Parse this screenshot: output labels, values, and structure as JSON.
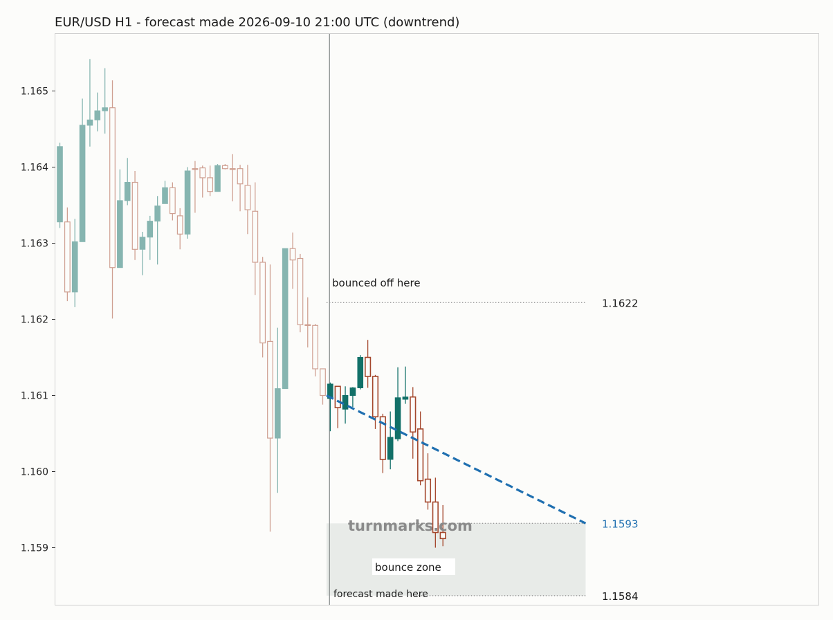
{
  "chart_data": {
    "type": "candlestick",
    "title": "EUR/USD H1 - forecast made 2026-09-10 21:00 UTC (downtrend)",
    "ylim": [
      1.15825,
      1.16575
    ],
    "yticks": [
      "1.159",
      "1.160",
      "1.161",
      "1.162",
      "1.163",
      "1.164",
      "1.165"
    ],
    "xlim": [
      -0.6,
      101
    ],
    "grid": false,
    "colors": {
      "up": "#127068",
      "down": "#a4472c",
      "forecast": "#1f6fb0",
      "zone": "#e8ebe8"
    },
    "history": [
      {
        "o": 1.16328,
        "h": 1.16432,
        "l": 1.1632,
        "c": 1.16427
      },
      {
        "o": 1.16328,
        "h": 1.16347,
        "l": 1.16224,
        "c": 1.16236
      },
      {
        "o": 1.16236,
        "h": 1.16332,
        "l": 1.16216,
        "c": 1.16302
      },
      {
        "o": 1.16302,
        "h": 1.1649,
        "l": 1.16302,
        "c": 1.16455
      },
      {
        "o": 1.16455,
        "h": 1.16542,
        "l": 1.16427,
        "c": 1.16462
      },
      {
        "o": 1.16462,
        "h": 1.16498,
        "l": 1.16447,
        "c": 1.16474
      },
      {
        "o": 1.16474,
        "h": 1.1653,
        "l": 1.16444,
        "c": 1.16478
      },
      {
        "o": 1.16478,
        "h": 1.16514,
        "l": 1.16201,
        "c": 1.16268
      },
      {
        "o": 1.16268,
        "h": 1.16397,
        "l": 1.16268,
        "c": 1.16356
      },
      {
        "o": 1.16356,
        "h": 1.16412,
        "l": 1.1635,
        "c": 1.1638
      },
      {
        "o": 1.1638,
        "h": 1.16395,
        "l": 1.16278,
        "c": 1.16292
      },
      {
        "o": 1.16292,
        "h": 1.16315,
        "l": 1.16258,
        "c": 1.16308
      },
      {
        "o": 1.16308,
        "h": 1.16336,
        "l": 1.16278,
        "c": 1.16329
      },
      {
        "o": 1.16329,
        "h": 1.16362,
        "l": 1.16272,
        "c": 1.16349
      },
      {
        "o": 1.16352,
        "h": 1.16382,
        "l": 1.16352,
        "c": 1.16373
      },
      {
        "o": 1.16373,
        "h": 1.1638,
        "l": 1.1633,
        "c": 1.16339
      },
      {
        "o": 1.16336,
        "h": 1.16346,
        "l": 1.16292,
        "c": 1.16312
      },
      {
        "o": 1.16312,
        "h": 1.164,
        "l": 1.16306,
        "c": 1.16395
      },
      {
        "o": 1.16398,
        "h": 1.16408,
        "l": 1.1634,
        "c": 1.16397
      },
      {
        "o": 1.16399,
        "h": 1.16402,
        "l": 1.1636,
        "c": 1.16386
      },
      {
        "o": 1.16386,
        "h": 1.16402,
        "l": 1.16362,
        "c": 1.16368
      },
      {
        "o": 1.16368,
        "h": 1.16404,
        "l": 1.16368,
        "c": 1.16402
      },
      {
        "o": 1.16402,
        "h": 1.16404,
        "l": 1.16397,
        "c": 1.16398
      },
      {
        "o": 1.16398,
        "h": 1.16417,
        "l": 1.16355,
        "c": 1.16397
      },
      {
        "o": 1.16398,
        "h": 1.16403,
        "l": 1.16342,
        "c": 1.16378
      },
      {
        "o": 1.16376,
        "h": 1.16403,
        "l": 1.16312,
        "c": 1.16344
      },
      {
        "o": 1.16342,
        "h": 1.1638,
        "l": 1.16232,
        "c": 1.16275
      },
      {
        "o": 1.16275,
        "h": 1.16282,
        "l": 1.1615,
        "c": 1.16169
      },
      {
        "o": 1.16171,
        "h": 1.16272,
        "l": 1.15921,
        "c": 1.16044
      },
      {
        "o": 1.16044,
        "h": 1.16189,
        "l": 1.15972,
        "c": 1.16109
      },
      {
        "o": 1.16109,
        "h": 1.16293,
        "l": 1.16109,
        "c": 1.16293
      },
      {
        "o": 1.16293,
        "h": 1.16314,
        "l": 1.1624,
        "c": 1.16278
      },
      {
        "o": 1.1628,
        "h": 1.16286,
        "l": 1.16183,
        "c": 1.16193
      },
      {
        "o": 1.16193,
        "h": 1.16229,
        "l": 1.16163,
        "c": 1.16192
      },
      {
        "o": 1.16192,
        "h": 1.16194,
        "l": 1.16125,
        "c": 1.16135
      },
      {
        "o": 1.16135,
        "h": 1.16135,
        "l": 1.16088,
        "c": 1.161
      }
    ],
    "forecast": [
      {
        "o": 1.16096,
        "h": 1.16117,
        "l": 1.16053,
        "c": 1.16115
      },
      {
        "o": 1.16112,
        "h": 1.16112,
        "l": 1.16057,
        "c": 1.16084
      },
      {
        "o": 1.16082,
        "h": 1.16112,
        "l": 1.16063,
        "c": 1.161
      },
      {
        "o": 1.161,
        "h": 1.16111,
        "l": 1.16085,
        "c": 1.1611
      },
      {
        "o": 1.1611,
        "h": 1.16153,
        "l": 1.16108,
        "c": 1.1615
      },
      {
        "o": 1.1615,
        "h": 1.16173,
        "l": 1.1611,
        "c": 1.16125
      },
      {
        "o": 1.16125,
        "h": 1.16127,
        "l": 1.16056,
        "c": 1.16072
      },
      {
        "o": 1.16072,
        "h": 1.16076,
        "l": 1.15998,
        "c": 1.16016
      },
      {
        "o": 1.16016,
        "h": 1.16079,
        "l": 1.16003,
        "c": 1.16045
      },
      {
        "o": 1.16043,
        "h": 1.16137,
        "l": 1.1604,
        "c": 1.16097
      },
      {
        "o": 1.16095,
        "h": 1.16138,
        "l": 1.16089,
        "c": 1.16098
      },
      {
        "o": 1.16098,
        "h": 1.16111,
        "l": 1.16017,
        "c": 1.16052
      },
      {
        "o": 1.16056,
        "h": 1.16079,
        "l": 1.15982,
        "c": 1.15988
      },
      {
        "o": 1.1599,
        "h": 1.16024,
        "l": 1.1595,
        "c": 1.1596
      },
      {
        "o": 1.1596,
        "h": 1.15992,
        "l": 1.159,
        "c": 1.1592
      },
      {
        "o": 1.1592,
        "h": 1.15956,
        "l": 1.15902,
        "c": 1.15912
      }
    ],
    "forecast_line": {
      "from": {
        "x": 35.5,
        "y": 1.161
      },
      "to": {
        "x": 70.0,
        "y": 1.15932
      }
    },
    "forecast_vline_x": 35.9,
    "levels": [
      {
        "value": 1.16222,
        "label": "1.1622",
        "color": "#1a1a1a",
        "x_from": 35.5
      },
      {
        "value": 1.15932,
        "label": "1.1593",
        "color": "#1f6fb0",
        "x_from": 47.0
      },
      {
        "value": 1.15837,
        "label": "1.1584",
        "color": "#1a1a1a",
        "x_from": 47.0
      }
    ],
    "zone": {
      "from": 1.15837,
      "to": 1.15932,
      "x_from": 35.5,
      "x_to": 70.0
    },
    "annotations": {
      "bounced": "bounced off here",
      "bounce_zone": "bounce zone",
      "forecast_made": "forecast made here",
      "watermark": "turnmarks.com"
    }
  }
}
